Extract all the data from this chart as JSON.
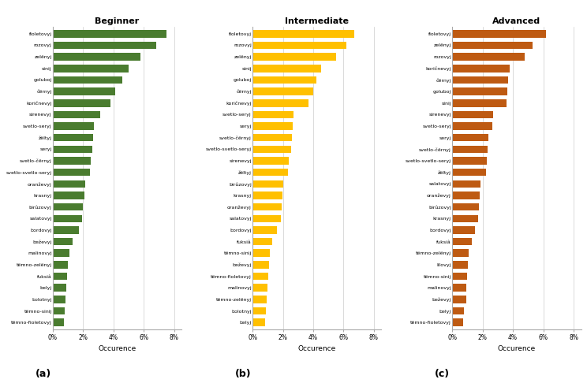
{
  "beginner": {
    "title": "Beginner",
    "color": "#4a7c2f",
    "labels": [
      "fioletovyj",
      "rozovyj",
      "zelënyj",
      "sinij",
      "goluboj",
      "čërnyj",
      "koričnevyj",
      "sirenevyj",
      "svetlo-seryj",
      "žëltyj",
      "seryj",
      "svetlo-čërnyj",
      "svetlo-svetlo-seryj",
      "oranževyj",
      "krasnyj",
      "birûzovyj",
      "salatovyj",
      "bordovyj",
      "beževyj",
      "malinovyj",
      "tëmno-zelënyj",
      "fuksiâ",
      "belyj",
      "bolotnyj",
      "tëmno-sinij",
      "tëmno-fioletovyj"
    ],
    "values": [
      7.5,
      6.8,
      5.8,
      5.0,
      4.6,
      4.1,
      3.8,
      3.1,
      2.7,
      2.65,
      2.6,
      2.5,
      2.45,
      2.15,
      2.1,
      2.0,
      1.95,
      1.7,
      1.3,
      1.1,
      1.0,
      0.95,
      0.9,
      0.85,
      0.8,
      0.75
    ]
  },
  "intermediate": {
    "title": "Intermediate",
    "color": "#FFC000",
    "labels": [
      "fioletovyj",
      "rozovyj",
      "zelënyj",
      "sinij",
      "goluboj",
      "čërnyj",
      "koričnevyj",
      "svetlo-seryj",
      "seryj",
      "svetlo-čërnyj",
      "svetlo-svetlo-seryj",
      "sirenevyj",
      "žëltyj",
      "birûzovyj",
      "krasnyj",
      "oranževyj",
      "salatovyj",
      "bordovyj",
      "fuksiâ",
      "tëmno-sinij",
      "beževyj",
      "tëmno-fioletovyj",
      "malinovyj",
      "tëmno-zelënyj",
      "bolotnyj",
      "belyj"
    ],
    "values": [
      6.7,
      6.2,
      5.5,
      4.5,
      4.2,
      4.0,
      3.7,
      2.7,
      2.65,
      2.6,
      2.55,
      2.4,
      2.35,
      2.0,
      1.95,
      1.9,
      1.85,
      1.6,
      1.3,
      1.15,
      1.1,
      1.05,
      1.0,
      0.95,
      0.9,
      0.85
    ]
  },
  "advanced": {
    "title": "Advanced",
    "color": "#BE5A12",
    "labels": [
      "fioletovyj",
      "zelënyj",
      "rozovyj",
      "koričnevyj",
      "čërnyj",
      "goluboj",
      "sinij",
      "sirenevyj",
      "svetlo-seryj",
      "seryj",
      "svetlo-čërnyj",
      "svetlo-svetlo-seryj",
      "žëltyj",
      "salatovyj",
      "oranževyj",
      "birûzovyj",
      "krasnyj",
      "bordovyj",
      "fuksiâ",
      "tëmno-zelënyj",
      "lilovyj",
      "tëmno-sinij",
      "malinovyj",
      "beževyj",
      "belyj",
      "tëmno-fioletovyj"
    ],
    "values": [
      6.2,
      5.3,
      4.8,
      3.8,
      3.7,
      3.65,
      3.6,
      2.7,
      2.65,
      2.4,
      2.35,
      2.3,
      2.2,
      1.85,
      1.8,
      1.75,
      1.7,
      1.5,
      1.3,
      1.1,
      1.05,
      1.0,
      0.95,
      0.9,
      0.75,
      0.7
    ]
  },
  "xlabel": "Occurence",
  "xlim": [
    0,
    8.5
  ],
  "xticks": [
    0,
    2,
    4,
    6,
    8
  ],
  "xticklabels": [
    "0%",
    "2%",
    "4%",
    "6%",
    "8%"
  ],
  "panel_labels": [
    "(a)",
    "(b)",
    "(c)"
  ],
  "bar_height": 0.65
}
